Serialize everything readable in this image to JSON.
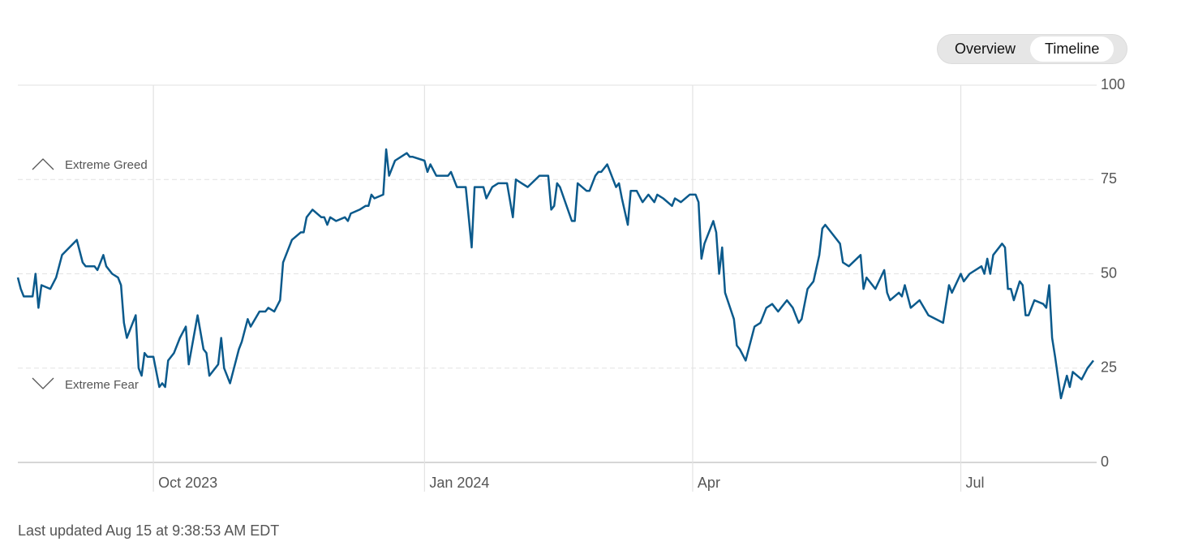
{
  "toggle": {
    "options": [
      "Overview",
      "Timeline"
    ],
    "selected": 1
  },
  "chart_data": {
    "type": "line",
    "color": "#0b5a8c",
    "xlim": [
      0,
      365
    ],
    "ylim": [
      0,
      100
    ],
    "yticks": [
      0,
      25,
      50,
      75,
      100
    ],
    "xticks": [
      {
        "value": 46,
        "label": "Oct 2023"
      },
      {
        "value": 138,
        "label": "Jan 2024"
      },
      {
        "value": 229,
        "label": "Apr"
      },
      {
        "value": 320,
        "label": "Jul"
      }
    ],
    "grid": true,
    "annotations": [
      "Extreme Greed",
      "Extreme Fear"
    ],
    "x": [
      0,
      1,
      2,
      5,
      6,
      7,
      8,
      11,
      13,
      15,
      20,
      22,
      23,
      26,
      27,
      29,
      30,
      32,
      34,
      35,
      36,
      37,
      40,
      41,
      42,
      43,
      44,
      46,
      48,
      49,
      50,
      51,
      53,
      55,
      57,
      58,
      61,
      63,
      64,
      65,
      68,
      69,
      70,
      72,
      75,
      76,
      78,
      79,
      82,
      84,
      85,
      87,
      89,
      90,
      91,
      93,
      96,
      97,
      98,
      100,
      103,
      104,
      105,
      106,
      108,
      111,
      112,
      113,
      116,
      118,
      119,
      120,
      121,
      124,
      125,
      126,
      128,
      132,
      133,
      134,
      138,
      139,
      140,
      142,
      145,
      146,
      147,
      149,
      152,
      154,
      155,
      158,
      159,
      161,
      163,
      166,
      168,
      169,
      171,
      173,
      177,
      180,
      181,
      182,
      183,
      184,
      188,
      189,
      190,
      193,
      194,
      196,
      197,
      198,
      200,
      203,
      204,
      205,
      207,
      208,
      210,
      212,
      213,
      214,
      216,
      217,
      219,
      222,
      223,
      225,
      228,
      230,
      231,
      232,
      233,
      236,
      237,
      238,
      239,
      240,
      243,
      244,
      245,
      247,
      250,
      252,
      254,
      256,
      258,
      259,
      261,
      263,
      265,
      266,
      268,
      270,
      272,
      273,
      274,
      276,
      279,
      280,
      282,
      286,
      287,
      288,
      291,
      294,
      295,
      296,
      299,
      300,
      301,
      303,
      306,
      309,
      314,
      316,
      317,
      320,
      321,
      323,
      327,
      328,
      329,
      330,
      331,
      334,
      335,
      336,
      337,
      338,
      340,
      341,
      342,
      343,
      345,
      348,
      349,
      350,
      351,
      352,
      354,
      356,
      357,
      358,
      361,
      363,
      364,
      365
    ],
    "values": [
      49,
      46,
      44,
      44,
      50,
      41,
      47,
      46,
      49,
      55,
      59,
      53,
      52,
      52,
      51,
      55,
      52,
      50,
      49,
      47,
      37,
      33,
      39,
      25,
      23,
      29,
      28,
      28,
      20,
      21,
      20,
      27,
      29,
      33,
      36,
      26,
      39,
      30,
      29,
      23,
      26,
      33,
      25,
      21,
      30,
      32,
      38,
      36,
      40,
      40,
      41,
      40,
      43,
      53,
      55,
      59,
      61,
      61,
      65,
      67,
      65,
      65,
      63,
      65,
      64,
      65,
      64,
      66,
      67,
      68,
      68,
      71,
      70,
      71,
      83,
      76,
      80,
      82,
      81,
      81,
      80,
      77,
      79,
      76,
      76,
      76,
      77,
      73,
      73,
      57,
      73,
      73,
      70,
      73,
      74,
      74,
      65,
      75,
      74,
      73,
      76,
      76,
      67,
      68,
      74,
      73,
      64,
      64,
      74,
      72,
      72,
      76,
      77,
      77,
      79,
      73,
      74,
      70,
      63,
      72,
      72,
      69,
      70,
      71,
      69,
      71,
      70,
      68,
      70,
      69,
      71,
      71,
      69,
      54,
      58,
      64,
      61,
      50,
      57,
      45,
      38,
      31,
      30,
      27,
      36,
      37,
      41,
      42,
      40,
      41,
      43,
      41,
      37,
      38,
      46,
      48,
      55,
      62,
      63,
      61,
      58,
      53,
      52,
      55,
      46,
      49,
      46,
      51,
      45,
      43,
      45,
      44,
      47,
      41,
      43,
      39,
      37,
      47,
      45,
      50,
      48,
      50,
      52,
      50,
      54,
      50,
      55,
      58,
      57,
      46,
      46,
      43,
      48,
      47,
      39,
      39,
      43,
      42,
      41,
      47,
      33,
      28,
      17,
      23,
      20,
      24,
      22,
      25,
      26,
      27
    ]
  },
  "footer": "Last updated Aug 15 at 9:38:53 AM EDT"
}
